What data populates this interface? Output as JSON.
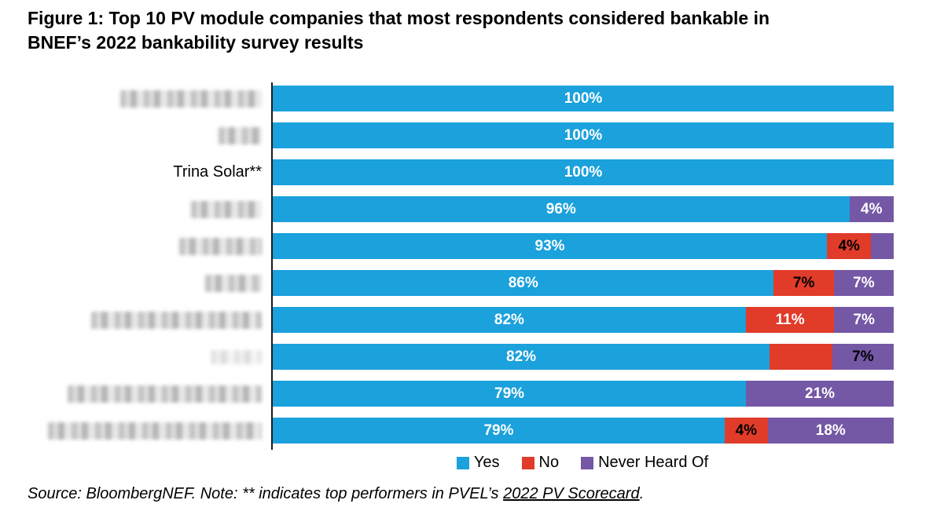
{
  "title": "Figure 1:  Top 10 PV module companies that most respondents considered bankable in\nBNEF’s 2022 bankability survey results",
  "footer": {
    "prefix": "Source: BloombergNEF. Note: ** indicates top performers in PVEL’s ",
    "link": "2022 PV Scorecard",
    "suffix": "."
  },
  "legend": [
    {
      "label": "Yes",
      "color": "#1BA1DC"
    },
    {
      "label": "No",
      "color": "#E13B2A"
    },
    {
      "label": "Never Heard Of",
      "color": "#7457A5"
    }
  ],
  "chart_data": {
    "type": "bar",
    "orientation": "horizontal-stacked",
    "title": "Figure 1: Top 10 PV module companies that most respondents considered bankable in BNEF’s 2022 bankability survey results",
    "note": "Company names on the y-axis are blurred/redacted in the image except Trina Solar**",
    "categories": [
      "",
      "",
      "Trina Solar**",
      "",
      "",
      "",
      "",
      "",
      "",
      ""
    ],
    "legend": [
      "Yes",
      "No",
      "Never Heard Of"
    ],
    "legend_position": "bottom-center",
    "colors": {
      "Yes": "#1BA1DC",
      "No": "#E13B2A",
      "Never Heard Of": "#7457A5"
    },
    "xlim": [
      0,
      100
    ],
    "grid": false,
    "value_label_format": "percent",
    "series": [
      {
        "name": "Yes",
        "values": [
          100,
          100,
          100,
          96,
          93,
          86,
          82,
          82,
          79,
          79
        ]
      },
      {
        "name": "No",
        "values": [
          0,
          0,
          0,
          0,
          4,
          7,
          11,
          11,
          0,
          4
        ]
      },
      {
        "name": "Never Heard Of",
        "values": [
          0,
          0,
          0,
          4,
          4,
          7,
          7,
          7,
          21,
          18
        ]
      }
    ]
  },
  "rows": [
    {
      "label": "",
      "redacted": true,
      "blur_width": 180,
      "segments": [
        {
          "series": "Yes",
          "value": 100,
          "label": "100%",
          "label_color": "#ffffff"
        }
      ]
    },
    {
      "label": "",
      "redacted": true,
      "blur_width": 55,
      "segments": [
        {
          "series": "Yes",
          "value": 100,
          "label": "100%",
          "label_color": "#ffffff"
        }
      ]
    },
    {
      "label": "Trina Solar**",
      "redacted": false,
      "blur_width": 0,
      "segments": [
        {
          "series": "Yes",
          "value": 100,
          "label": "100%",
          "label_color": "#ffffff"
        }
      ]
    },
    {
      "label": "",
      "redacted": true,
      "blur_width": 90,
      "segments": [
        {
          "series": "Yes",
          "value": 96,
          "label": "96%",
          "label_color": "#ffffff"
        },
        {
          "series": "Never Heard Of",
          "value": 4,
          "label": "4%",
          "label_color": "#ffffff"
        }
      ]
    },
    {
      "label": "",
      "redacted": true,
      "blur_width": 105,
      "segments": [
        {
          "series": "Yes",
          "value": 93,
          "label": "93%",
          "label_color": "#ffffff"
        },
        {
          "series": "No",
          "value": 4,
          "label": "4%",
          "label_color": "#000000"
        },
        {
          "series": "Never Heard Of",
          "value": 4,
          "label": "",
          "label_color": "#ffffff"
        }
      ]
    },
    {
      "label": "",
      "redacted": true,
      "blur_width": 72,
      "segments": [
        {
          "series": "Yes",
          "value": 86,
          "label": "86%",
          "label_color": "#ffffff"
        },
        {
          "series": "No",
          "value": 7,
          "label": "7%",
          "label_color": "#000000"
        },
        {
          "series": "Never Heard Of",
          "value": 7,
          "label": "7%",
          "label_color": "#ffffff"
        }
      ]
    },
    {
      "label": "",
      "redacted": true,
      "blur_width": 217,
      "segments": [
        {
          "series": "Yes",
          "value": 82,
          "label": "82%",
          "label_color": "#ffffff"
        },
        {
          "series": "No",
          "value": 11,
          "label": "11%",
          "label_color": "#ffffff"
        },
        {
          "series": "Never Heard Of",
          "value": 7,
          "label": "7%",
          "label_color": "#ffffff"
        }
      ]
    },
    {
      "label": "",
      "redacted": true,
      "blur_width": 65,
      "faint": true,
      "segments": [
        {
          "series": "Yes",
          "value": 82,
          "label": "82%",
          "label_color": "#ffffff"
        },
        {
          "series": "No",
          "value": 11,
          "label": "",
          "label_color": "#ffffff"
        },
        {
          "series": "Never Heard Of",
          "value": 7,
          "label": "7%",
          "label_color": "#000000"
        }
      ]
    },
    {
      "label": "",
      "redacted": true,
      "blur_width": 247,
      "segments": [
        {
          "series": "Yes",
          "value": 79,
          "label": "79%",
          "label_color": "#ffffff"
        },
        {
          "series": "Never Heard Of",
          "value": 21,
          "label": "21%",
          "label_color": "#ffffff"
        }
      ]
    },
    {
      "label": "",
      "redacted": true,
      "blur_width": 272,
      "segments": [
        {
          "series": "Yes",
          "value": 79,
          "label": "79%",
          "label_color": "#ffffff"
        },
        {
          "series": "No",
          "value": 4,
          "label": "4%",
          "label_color": "#000000"
        },
        {
          "series": "Never Heard Of",
          "value": 18,
          "label": "18%",
          "label_color": "#ffffff"
        }
      ]
    }
  ]
}
